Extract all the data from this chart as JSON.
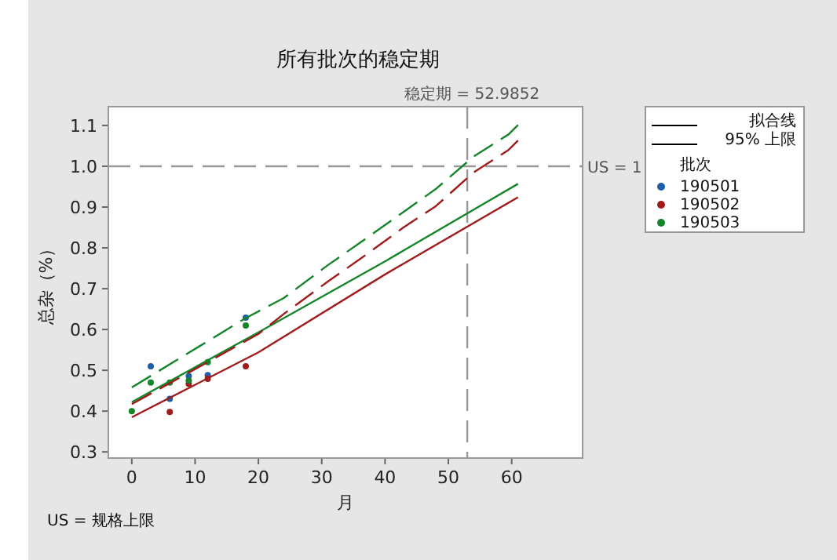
{
  "chart_data": {
    "type": "scatter",
    "title": "所有批次的稳定期",
    "xlabel": "月",
    "ylabel": "总杂（%）",
    "legend_title": "批次",
    "legend": "right",
    "grid": false,
    "xlim": [
      -3.7,
      71.2
    ],
    "ylim": [
      0.285,
      1.146
    ],
    "xticks": [
      0,
      10,
      20,
      30,
      40,
      50,
      60
    ],
    "yticks": [
      0.3,
      0.4,
      0.5,
      0.6,
      0.7,
      0.8,
      0.9,
      {
        "value": 1,
        "label": "1.0"
      },
      1.1
    ],
    "series": [
      {
        "name": "190501",
        "marker": "circle",
        "color": "#1f5fa8",
        "x": [
          3,
          6,
          9,
          12,
          18
        ],
        "values": [
          0.51,
          0.43,
          0.486,
          0.488,
          0.629
        ]
      },
      {
        "name": "190502",
        "marker": "circle",
        "color": "#a01c1c",
        "x": [
          6,
          9,
          12,
          18
        ],
        "values": [
          0.398,
          0.467,
          0.479,
          0.51
        ]
      },
      {
        "name": "190503",
        "marker": "circle",
        "color": "#14852a",
        "x": [
          0,
          3,
          6,
          9,
          12,
          18
        ],
        "values": [
          0.4,
          0.47,
          0.47,
          0.475,
          0.52,
          0.61
        ]
      },
      {
        "type": "line",
        "line_style": "solid",
        "color": "#a01c1c",
        "x": [
          0,
          20,
          40,
          61
        ],
        "values": [
          0.385,
          0.544,
          0.735,
          0.924
        ]
      },
      {
        "type": "line",
        "line_style": "solid",
        "color": "#14852a",
        "x": [
          0,
          20,
          40,
          61
        ],
        "values": [
          0.422,
          0.593,
          0.767,
          0.957
        ]
      },
      {
        "type": "line",
        "line_style": "dashed",
        "color": "#a01c1c",
        "x": [
          0,
          20,
          24,
          31,
          36,
          43,
          48,
          54,
          59.5,
          61
        ],
        "values": [
          0.417,
          0.589,
          0.638,
          0.718,
          0.772,
          0.851,
          0.902,
          0.985,
          1.04,
          1.063
        ]
      },
      {
        "type": "line",
        "line_style": "dashed",
        "color": "#14852a",
        "x": [
          0,
          18,
          24,
          31,
          36,
          43,
          48,
          54,
          59.5,
          61
        ],
        "values": [
          0.458,
          0.628,
          0.677,
          0.758,
          0.812,
          0.889,
          0.944,
          1.024,
          1.078,
          1.101
        ]
      }
    ],
    "ref_lines": [
      {
        "axis": "y",
        "value": 1,
        "label": "US = 1",
        "color": "#999999",
        "line_style": "dashed"
      },
      {
        "axis": "x",
        "value": 52.9852,
        "label": "稳定期 = 52.9852",
        "color": "#999999",
        "line_style": "dashed"
      }
    ],
    "annotations": [
      "拟合线",
      "95% 上限",
      "US = 规格上限"
    ]
  }
}
